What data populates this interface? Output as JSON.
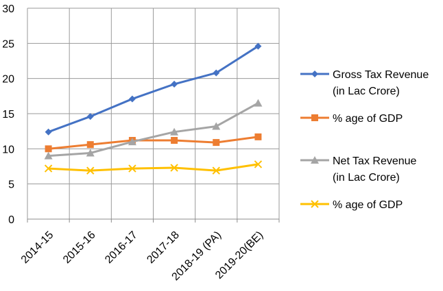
{
  "chart_data": {
    "type": "line",
    "categories": [
      "2014-15",
      "2015-16",
      "2016-17",
      "2017-18",
      "2018-19 (PA)",
      "2019-20(BE)"
    ],
    "ylim": [
      0,
      30
    ],
    "yticks": [
      0,
      5,
      10,
      15,
      20,
      25,
      30
    ],
    "grid": true,
    "legend_position": "right",
    "series": [
      {
        "name": "Gross Tax Revenue (in Lac Crore)",
        "legend_lines": [
          "Gross Tax Revenue",
          "(in Lac Crore)"
        ],
        "color": "#4472C4",
        "marker": "diamond",
        "values": [
          12.4,
          14.6,
          17.1,
          19.2,
          20.8,
          24.6
        ]
      },
      {
        "name": "% age of GDP",
        "legend_lines": [
          "% age of GDP"
        ],
        "color": "#ED7D31",
        "marker": "square",
        "values": [
          10.0,
          10.6,
          11.2,
          11.2,
          10.9,
          11.7
        ]
      },
      {
        "name": " Net Tax Revenue (in Lac Crore)",
        "legend_lines": [
          " Net Tax Revenue",
          "(in Lac Crore)"
        ],
        "color": "#A5A5A5",
        "marker": "triangle",
        "values": [
          9.0,
          9.4,
          11.0,
          12.4,
          13.2,
          16.5
        ]
      },
      {
        "name": "% age of GDP",
        "legend_lines": [
          "% age of GDP"
        ],
        "color": "#FFC000",
        "marker": "x",
        "values": [
          7.2,
          6.9,
          7.2,
          7.3,
          6.9,
          7.8
        ]
      }
    ]
  }
}
